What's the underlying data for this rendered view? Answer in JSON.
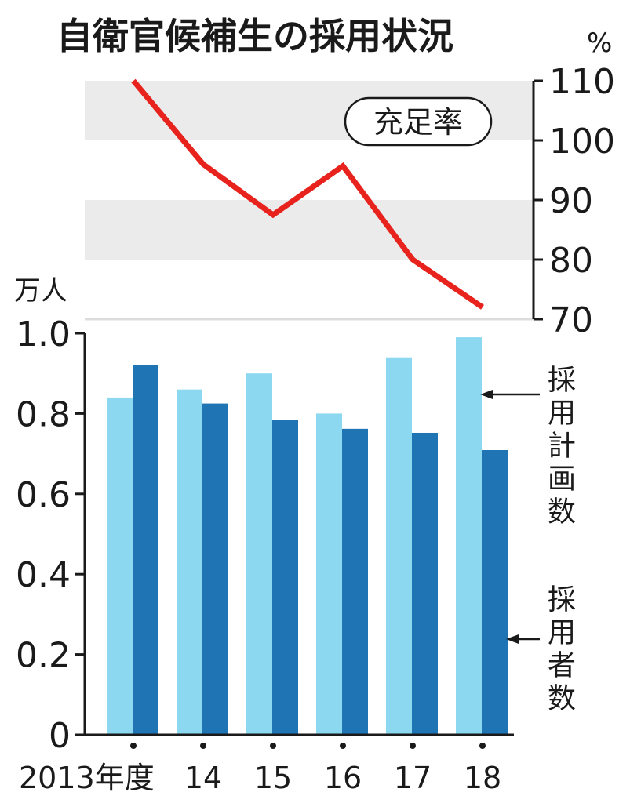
{
  "chart_data": [
    {
      "type": "line",
      "title": "自衛官候補生の採用状況",
      "series": [
        {
          "name": "充足率",
          "values": [
            110,
            96,
            87.5,
            95.7,
            80,
            72
          ]
        }
      ],
      "categories": [
        "2013年度",
        "14",
        "15",
        "16",
        "17",
        "18"
      ],
      "ylabel": "%",
      "ylim": [
        70,
        110
      ],
      "yticks": [
        "110",
        "100",
        "90",
        "80",
        "70"
      ],
      "y_axis_side": "right",
      "shaded_bands": [
        [
          100,
          110
        ],
        [
          80,
          90
        ]
      ],
      "color": "#e8231e"
    },
    {
      "type": "bar",
      "categories": [
        "2013年度",
        "14",
        "15",
        "16",
        "17",
        "18"
      ],
      "ylabel": "万人",
      "ylim": [
        0,
        1.0
      ],
      "yticks": [
        "1.0",
        "0.8",
        "0.6",
        "0.4",
        "0.2",
        "0"
      ],
      "series": [
        {
          "name": "採用計画数",
          "values": [
            0.84,
            0.86,
            0.9,
            0.8,
            0.94,
            0.99
          ],
          "color": "#8dd8f1"
        },
        {
          "name": "採用者数",
          "values": [
            0.92,
            0.825,
            0.785,
            0.762,
            0.752,
            0.709
          ],
          "color": "#1f74b3"
        }
      ]
    }
  ]
}
